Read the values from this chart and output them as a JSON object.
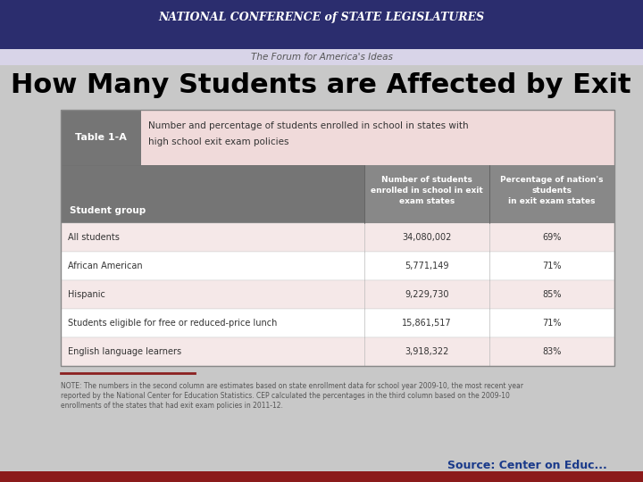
{
  "title": "How Many Students are Affected by Exit Exams?",
  "header_bar_color": "#2b2d6e",
  "header_text": "NATIONAL CONFERENCE of STATE LEGISLATURES",
  "subheader_text": "The Forum for America's Ideas",
  "table_label": "Table 1-A",
  "table_description_line1": "Number and percentage of students enrolled in school in states with",
  "table_description_line2": "high school exit exam policies",
  "col_header1_line1": "Number of students",
  "col_header1_line2": "enrolled in school in exit",
  "col_header1_line3": "exam states",
  "col_header2_line1": "Percentage of nation's",
  "col_header2_line2": "students",
  "col_header2_line3": "in exit exam states",
  "row_header": "Student group",
  "rows": [
    [
      "All students",
      "34,080,002",
      "69%"
    ],
    [
      "African American",
      "5,771,149",
      "71%"
    ],
    [
      "Hispanic",
      "9,229,730",
      "85%"
    ],
    [
      "Students eligible for free or reduced-price lunch",
      "15,861,517",
      "71%"
    ],
    [
      "English language learners",
      "3,918,322",
      "83%"
    ]
  ],
  "note_text": "NOTE: The numbers in the second column are estimates based on state enrollment data for school year 2009-10, the most recent year\nreported by the National Center for Education Statistics. CEP calculated the percentages in the third column based on the 2009-10\nenrollments of the states that had exit exam policies in 2011-12.",
  "source_text": "Source: Center on Educ",
  "bg_color": "#c8c8c8",
  "table_bg_pink": "#f0dada",
  "table_header_bg": "#757575",
  "table_label_bg": "#757575",
  "table_border_color": "#aaaaaa",
  "row_alt_color": "#f5e8e8",
  "row_white_color": "#ffffff",
  "title_fontsize": 22,
  "source_color": "#1a3a8a"
}
